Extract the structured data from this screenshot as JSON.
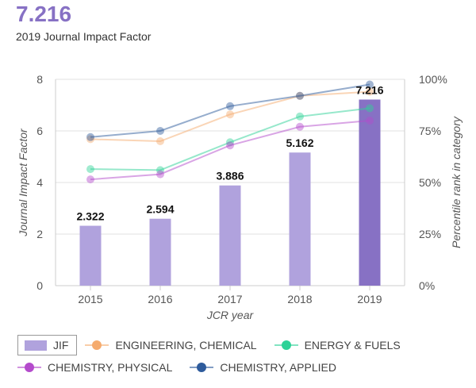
{
  "header": {
    "value": "7.216",
    "label": "2019 Journal Impact Factor"
  },
  "chart_data": {
    "type": "bar",
    "categories": [
      "2015",
      "2016",
      "2017",
      "2018",
      "2019"
    ],
    "values": [
      2.322,
      2.594,
      3.886,
      5.162,
      7.216
    ],
    "value_labels": [
      "2.322",
      "2.594",
      "3.886",
      "5.162",
      "7.216"
    ],
    "xlabel": "JCR year",
    "ylabel": "Journal Impact Factor",
    "y2label": "Percentile rank in category",
    "ylim": [
      0,
      8
    ],
    "y_ticks": [
      "0",
      "2",
      "4",
      "6",
      "8"
    ],
    "y2lim": [
      0,
      100
    ],
    "y2_ticks": [
      "0%",
      "25%",
      "50%",
      "75%",
      "100%"
    ],
    "grid": true,
    "bar_color": "#b0a2dd",
    "highlight_bar_color": "#8771c4",
    "bar_series_name": "JIF",
    "lines": [
      {
        "name": "ENGINEERING, CHEMICAL",
        "color": "#f5ab6e",
        "values": [
          71,
          70,
          83,
          92,
          94
        ]
      },
      {
        "name": "ENERGY & FUELS",
        "color": "#2ed297",
        "values": [
          56.5,
          56,
          69.5,
          82,
          86
        ]
      },
      {
        "name": "CHEMISTRY, PHYSICAL",
        "color": "#b44bcc",
        "values": [
          51.5,
          54,
          68,
          77,
          80
        ]
      },
      {
        "name": "CHEMISTRY, APPLIED",
        "color": "#2e5b9c",
        "values": [
          72,
          75,
          87,
          92,
          97.5
        ]
      }
    ],
    "legend_position": "bottom"
  }
}
